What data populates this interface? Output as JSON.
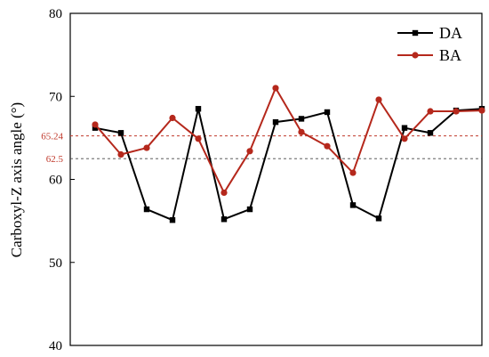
{
  "chart_data": {
    "type": "line",
    "ylabel": "Carboxyl-Z axis angle (°)",
    "ylim": [
      40,
      80
    ],
    "yticks": [
      40,
      50,
      60,
      70,
      80
    ],
    "x": [
      1,
      2,
      3,
      4,
      5,
      6,
      7,
      8,
      9,
      10,
      11,
      12,
      13,
      14,
      15,
      16
    ],
    "series": [
      {
        "name": "DA",
        "color": "#000000",
        "marker": "square",
        "values": [
          66.2,
          65.6,
          56.4,
          55.1,
          68.5,
          55.2,
          56.4,
          66.9,
          67.3,
          68.1,
          56.9,
          55.3,
          66.2,
          65.6,
          68.3,
          68.5
        ]
      },
      {
        "name": "BA",
        "color": "#b5281c",
        "marker": "circle",
        "values": [
          66.6,
          63.0,
          63.8,
          67.4,
          64.9,
          58.4,
          63.4,
          71.0,
          65.7,
          64.0,
          60.8,
          69.6,
          64.9,
          68.2,
          68.2,
          68.3
        ]
      }
    ],
    "reference_lines": [
      {
        "label": "65.24",
        "value": 65.24,
        "color": "#c0392b",
        "style": "dashed"
      },
      {
        "label": "62.5",
        "value": 62.5,
        "color": "#444444",
        "style": "dashed"
      }
    ],
    "legend": "top-right",
    "grid": false
  }
}
